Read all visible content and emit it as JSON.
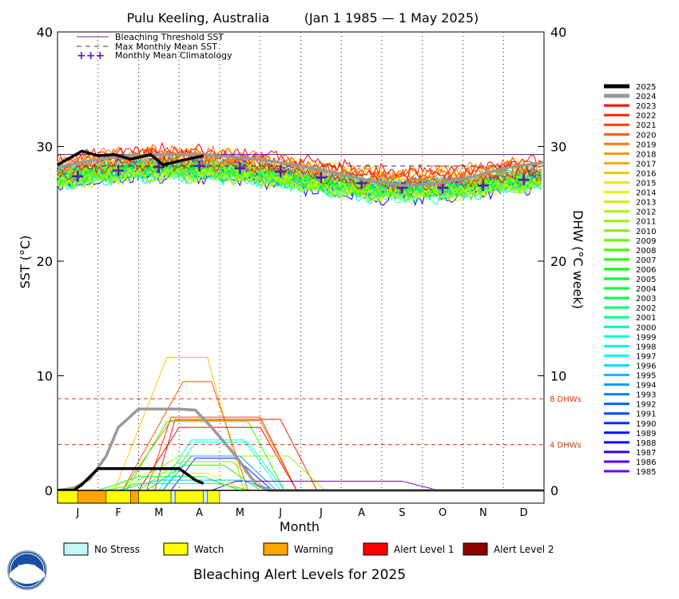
{
  "chart_data": {
    "type": "line",
    "title": "Pulu Keeling, Australia",
    "date_range": "(Jan 1 1985 — 1 May 2025)",
    "xlabel": "Month",
    "ylabel_left": "SST (°C)",
    "ylabel_right": "DHW (°C week)",
    "ylim": [
      0,
      40
    ],
    "y_ticks": [
      "0",
      "10",
      "20",
      "30",
      "40"
    ],
    "months": [
      "J",
      "F",
      "M",
      "A",
      "M",
      "J",
      "J",
      "A",
      "S",
      "O",
      "N",
      "D"
    ],
    "bleaching_threshold_sst": 29.3,
    "max_monthly_mean_sst": 28.3,
    "monthly_mean_climatology": [
      27.4,
      27.9,
      28.2,
      28.3,
      28.1,
      27.8,
      27.3,
      26.8,
      26.4,
      26.4,
      26.6,
      27.1
    ],
    "dhw_thresholds": [
      {
        "value": 8,
        "label": "8 DHWs"
      },
      {
        "value": 4,
        "label": "4 DHWs"
      }
    ],
    "legend": [
      {
        "label": "Bleaching Threshold SST",
        "style": "solid",
        "color": "#6a2a8a"
      },
      {
        "label": "Max Monthly Mean SST",
        "style": "dashed",
        "color": "#333333"
      },
      {
        "label": "Monthly Mean Climatology",
        "style": "plus",
        "color": "#5a18b0"
      }
    ],
    "years": [
      "2025",
      "2024",
      "2023",
      "2022",
      "2021",
      "2020",
      "2019",
      "2018",
      "2017",
      "2016",
      "2015",
      "2014",
      "2013",
      "2012",
      "2011",
      "2010",
      "2009",
      "2008",
      "2007",
      "2006",
      "2005",
      "2004",
      "2003",
      "2002",
      "2001",
      "2000",
      "1999",
      "1998",
      "1997",
      "1996",
      "1995",
      "1994",
      "1993",
      "1992",
      "1991",
      "1990",
      "1989",
      "1988",
      "1987",
      "1986",
      "1985"
    ],
    "series_highlight": [
      {
        "name": "2025",
        "sst": [
          28.4,
          29.0,
          29.6,
          29.2,
          29.3,
          28.9,
          29.3,
          28.4,
          28.9,
          29.2
        ],
        "sst_month": [
          0,
          0.3,
          0.6,
          1.0,
          1.4,
          1.8,
          2.3,
          2.6,
          3.2,
          3.6
        ],
        "dhw": [
          0,
          0,
          0.5,
          1.2,
          1.9,
          1.9,
          1.9,
          1.9,
          1.9,
          0.9,
          0.6
        ],
        "dhw_month": [
          0,
          0.4,
          0.6,
          0.8,
          1.0,
          1.5,
          2.0,
          2.5,
          3.0,
          3.4,
          3.6
        ]
      },
      {
        "name": "2024",
        "sst": [
          28.2,
          28.8,
          29.2,
          29.3,
          29.3,
          29.1,
          28.8,
          28.3,
          27.7,
          27.0,
          26.6,
          26.8,
          27.4,
          28.2,
          28.6
        ],
        "dhw": [
          0,
          0.2,
          1.0,
          3.0,
          5.5,
          7.1,
          7.1,
          7.1,
          7.0,
          5.5,
          3.0,
          0.5,
          0,
          0,
          0
        ],
        "dhw_month": [
          0,
          0.4,
          0.8,
          1.2,
          1.5,
          2.0,
          2.5,
          3.0,
          3.4,
          3.8,
          4.4,
          4.9,
          5.2,
          8,
          12
        ]
      }
    ],
    "max_dhw_by_year_approx": {
      "2016": 11.6,
      "2020": 9.5,
      "2021": 6.4,
      "2024": 7.1,
      "2019": 6.2,
      "2007": 6.1,
      "1998": 4.4,
      "2025": 1.9
    }
  },
  "alert_strip": [
    {
      "level": "Watch",
      "from": 0.0,
      "to": 0.5
    },
    {
      "level": "Warning",
      "from": 0.5,
      "to": 1.2
    },
    {
      "level": "Watch",
      "from": 1.2,
      "to": 1.8
    },
    {
      "level": "Warning",
      "from": 1.8,
      "to": 2.0
    },
    {
      "level": "Watch",
      "from": 2.0,
      "to": 2.8
    },
    {
      "level": "No Stress",
      "from": 2.8,
      "to": 2.9
    },
    {
      "level": "Watch",
      "from": 2.9,
      "to": 3.6
    },
    {
      "level": "No Stress",
      "from": 3.6,
      "to": 3.7
    },
    {
      "level": "Watch",
      "from": 3.7,
      "to": 4.0
    }
  ],
  "alert_levels": [
    {
      "label": "No Stress",
      "color": "#c6f5f6"
    },
    {
      "label": "Watch",
      "color": "#ffff00"
    },
    {
      "label": "Warning",
      "color": "#ffa500"
    },
    {
      "label": "Alert Level 1",
      "color": "#ff0000"
    },
    {
      "label": "Alert Level 2",
      "color": "#8b0000"
    }
  ],
  "bottom_title": "Bleaching Alert Levels for 2025",
  "logo_text": "NOAA"
}
